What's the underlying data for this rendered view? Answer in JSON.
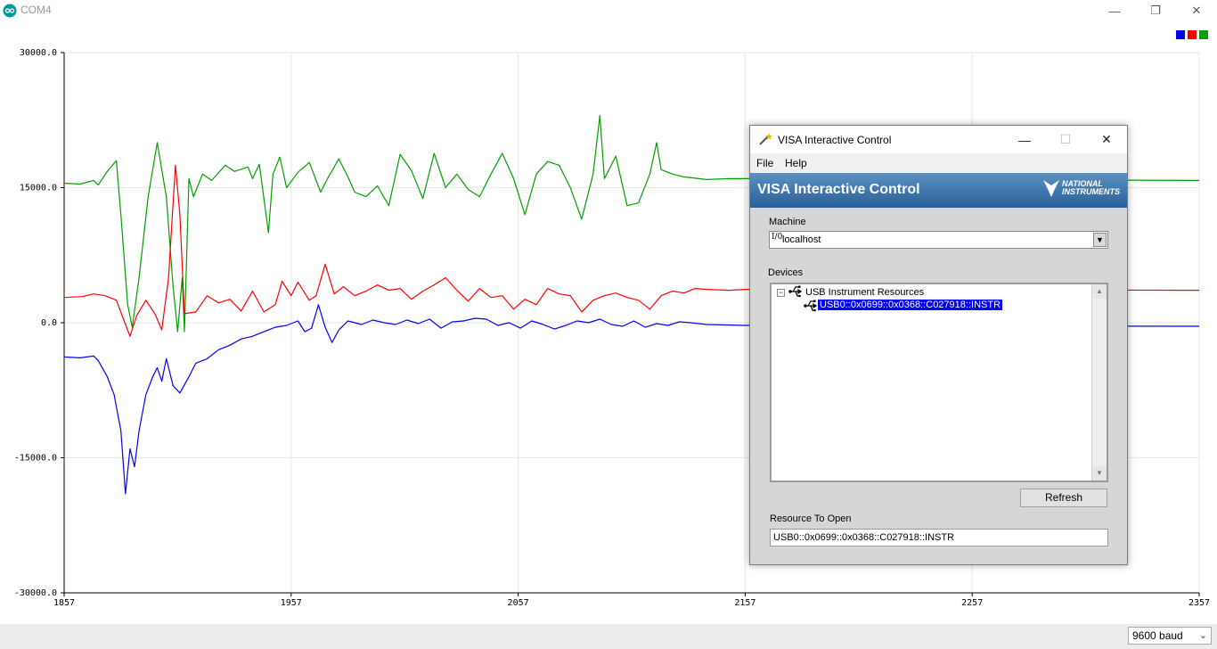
{
  "window": {
    "title": "COM4",
    "minimize": "—",
    "restore": "❐",
    "close": "✕"
  },
  "legend_colors": [
    "#0000ff",
    "#ff0000",
    "#00a000"
  ],
  "chart_data": {
    "type": "line",
    "xlim": [
      1857,
      2357
    ],
    "ylim": [
      -30000,
      30000
    ],
    "x_ticks": [
      "1857",
      "1957",
      "2057",
      "2157",
      "2257",
      "2357"
    ],
    "y_ticks": [
      "30000.0",
      "15000.0",
      "0.0",
      "-15000.0",
      "-30000.0"
    ],
    "grid": true,
    "series": [
      {
        "color": "#00a000",
        "points": [
          [
            1857,
            15500
          ],
          [
            1864,
            15400
          ],
          [
            1870,
            15800
          ],
          [
            1872,
            15300
          ],
          [
            1876,
            16800
          ],
          [
            1880,
            18000
          ],
          [
            1882,
            12000
          ],
          [
            1885,
            2000
          ],
          [
            1887,
            -500
          ],
          [
            1890,
            5000
          ],
          [
            1894,
            14000
          ],
          [
            1898,
            20000
          ],
          [
            1902,
            14000
          ],
          [
            1905,
            4000
          ],
          [
            1907,
            -1000
          ],
          [
            1909,
            5000
          ],
          [
            1910,
            -1000
          ],
          [
            1912,
            16000
          ],
          [
            1914,
            14000
          ],
          [
            1918,
            16500
          ],
          [
            1922,
            15800
          ],
          [
            1928,
            17500
          ],
          [
            1932,
            16800
          ],
          [
            1938,
            17300
          ],
          [
            1940,
            16000
          ],
          [
            1943,
            17600
          ],
          [
            1947,
            10000
          ],
          [
            1949,
            16500
          ],
          [
            1952,
            18400
          ],
          [
            1955,
            15000
          ],
          [
            1960,
            16700
          ],
          [
            1965,
            17800
          ],
          [
            1970,
            14500
          ],
          [
            1973,
            16000
          ],
          [
            1978,
            18200
          ],
          [
            1982,
            16200
          ],
          [
            1985,
            14500
          ],
          [
            1990,
            14000
          ],
          [
            1995,
            15200
          ],
          [
            2000,
            13000
          ],
          [
            2005,
            18700
          ],
          [
            2010,
            16900
          ],
          [
            2015,
            13800
          ],
          [
            2020,
            18800
          ],
          [
            2025,
            15000
          ],
          [
            2030,
            16500
          ],
          [
            2035,
            14800
          ],
          [
            2040,
            14000
          ],
          [
            2045,
            16500
          ],
          [
            2050,
            18800
          ],
          [
            2055,
            16000
          ],
          [
            2060,
            12000
          ],
          [
            2065,
            16500
          ],
          [
            2070,
            17900
          ],
          [
            2075,
            17500
          ],
          [
            2080,
            15000
          ],
          [
            2085,
            11500
          ],
          [
            2090,
            16500
          ],
          [
            2093,
            23000
          ],
          [
            2095,
            16000
          ],
          [
            2100,
            18500
          ],
          [
            2105,
            13000
          ],
          [
            2110,
            13300
          ],
          [
            2115,
            16500
          ],
          [
            2118,
            20000
          ],
          [
            2120,
            17000
          ],
          [
            2125,
            16500
          ],
          [
            2130,
            16200
          ],
          [
            2140,
            15900
          ],
          [
            2150,
            16000
          ],
          [
            2157,
            16000
          ],
          [
            2357,
            15800
          ]
        ]
      },
      {
        "color": "#ff0000",
        "points": [
          [
            1857,
            2800
          ],
          [
            1865,
            2900
          ],
          [
            1870,
            3200
          ],
          [
            1875,
            3000
          ],
          [
            1880,
            2500
          ],
          [
            1883,
            500
          ],
          [
            1886,
            -1500
          ],
          [
            1889,
            800
          ],
          [
            1893,
            2500
          ],
          [
            1897,
            1000
          ],
          [
            1900,
            -800
          ],
          [
            1903,
            5000
          ],
          [
            1906,
            17500
          ],
          [
            1908,
            12000
          ],
          [
            1910,
            1000
          ],
          [
            1915,
            1200
          ],
          [
            1920,
            3000
          ],
          [
            1925,
            2200
          ],
          [
            1930,
            2600
          ],
          [
            1935,
            1300
          ],
          [
            1940,
            3500
          ],
          [
            1945,
            1200
          ],
          [
            1950,
            2000
          ],
          [
            1953,
            4600
          ],
          [
            1957,
            3000
          ],
          [
            1960,
            4500
          ],
          [
            1965,
            2500
          ],
          [
            1968,
            3000
          ],
          [
            1972,
            6500
          ],
          [
            1976,
            3200
          ],
          [
            1980,
            4000
          ],
          [
            1985,
            3000
          ],
          [
            1990,
            3500
          ],
          [
            1995,
            4200
          ],
          [
            2000,
            3600
          ],
          [
            2005,
            3800
          ],
          [
            2010,
            2600
          ],
          [
            2015,
            3500
          ],
          [
            2020,
            4200
          ],
          [
            2025,
            5000
          ],
          [
            2030,
            3600
          ],
          [
            2035,
            2400
          ],
          [
            2040,
            3800
          ],
          [
            2045,
            2800
          ],
          [
            2050,
            3000
          ],
          [
            2055,
            1500
          ],
          [
            2060,
            2600
          ],
          [
            2065,
            2000
          ],
          [
            2070,
            3800
          ],
          [
            2075,
            3200
          ],
          [
            2080,
            3000
          ],
          [
            2085,
            1200
          ],
          [
            2090,
            2500
          ],
          [
            2095,
            3000
          ],
          [
            2100,
            3300
          ],
          [
            2105,
            2800
          ],
          [
            2110,
            2500
          ],
          [
            2115,
            1500
          ],
          [
            2120,
            3000
          ],
          [
            2125,
            3500
          ],
          [
            2130,
            3300
          ],
          [
            2135,
            3800
          ],
          [
            2140,
            3700
          ],
          [
            2150,
            3600
          ],
          [
            2157,
            3700
          ],
          [
            2357,
            3600
          ]
        ]
      },
      {
        "color": "#0000ff",
        "points": [
          [
            1857,
            -3800
          ],
          [
            1864,
            -3900
          ],
          [
            1870,
            -3700
          ],
          [
            1872,
            -4200
          ],
          [
            1876,
            -6000
          ],
          [
            1879,
            -8000
          ],
          [
            1882,
            -12000
          ],
          [
            1884,
            -19000
          ],
          [
            1886,
            -14000
          ],
          [
            1888,
            -16000
          ],
          [
            1890,
            -12000
          ],
          [
            1893,
            -8000
          ],
          [
            1896,
            -6000
          ],
          [
            1898,
            -5000
          ],
          [
            1900,
            -6500
          ],
          [
            1902,
            -4000
          ],
          [
            1905,
            -7000
          ],
          [
            1908,
            -7800
          ],
          [
            1912,
            -6000
          ],
          [
            1915,
            -4500
          ],
          [
            1920,
            -4000
          ],
          [
            1925,
            -3000
          ],
          [
            1930,
            -2500
          ],
          [
            1935,
            -1800
          ],
          [
            1940,
            -1500
          ],
          [
            1945,
            -1000
          ],
          [
            1950,
            -500
          ],
          [
            1955,
            -300
          ],
          [
            1960,
            200
          ],
          [
            1963,
            -1000
          ],
          [
            1966,
            -600
          ],
          [
            1969,
            2000
          ],
          [
            1972,
            -500
          ],
          [
            1975,
            -2200
          ],
          [
            1978,
            -800
          ],
          [
            1982,
            200
          ],
          [
            1988,
            -200
          ],
          [
            1993,
            300
          ],
          [
            1998,
            0
          ],
          [
            2003,
            -200
          ],
          [
            2008,
            300
          ],
          [
            2013,
            -100
          ],
          [
            2018,
            400
          ],
          [
            2023,
            -600
          ],
          [
            2028,
            100
          ],
          [
            2033,
            200
          ],
          [
            2038,
            500
          ],
          [
            2043,
            400
          ],
          [
            2048,
            -300
          ],
          [
            2053,
            0
          ],
          [
            2058,
            -600
          ],
          [
            2063,
            200
          ],
          [
            2068,
            -200
          ],
          [
            2073,
            -700
          ],
          [
            2078,
            -300
          ],
          [
            2083,
            200
          ],
          [
            2088,
            0
          ],
          [
            2093,
            400
          ],
          [
            2098,
            -200
          ],
          [
            2103,
            -400
          ],
          [
            2108,
            200
          ],
          [
            2113,
            -500
          ],
          [
            2118,
            -100
          ],
          [
            2123,
            -300
          ],
          [
            2128,
            100
          ],
          [
            2133,
            0
          ],
          [
            2140,
            -200
          ],
          [
            2157,
            -300
          ],
          [
            2357,
            -400
          ]
        ]
      }
    ]
  },
  "bottom": {
    "baud": "9600 baud",
    "baud_arrow": "⌄"
  },
  "dialog": {
    "title": "VISA Interactive Control",
    "minimize": "—",
    "maximize": "☐",
    "close": "✕",
    "menu": [
      "File",
      "Help"
    ],
    "banner_title": "VISA Interactive Control",
    "logo_line1": "NATIONAL",
    "logo_line2": "INSTRUMENTS",
    "machine_label": "Machine",
    "machine_icon": "I/0",
    "machine_value": "localhost",
    "combo_arrow": "▼",
    "devices_label": "Devices",
    "tree": {
      "expander": "−",
      "root": "USB Instrument Resources",
      "child": "USB0::0x0699::0x0368::C027918::INSTR",
      "scroll_up": "▲",
      "scroll_down": "▼"
    },
    "refresh": "Refresh",
    "resource_label": "Resource To Open",
    "resource_value": "USB0::0x0699::0x0368::C027918::INSTR"
  }
}
